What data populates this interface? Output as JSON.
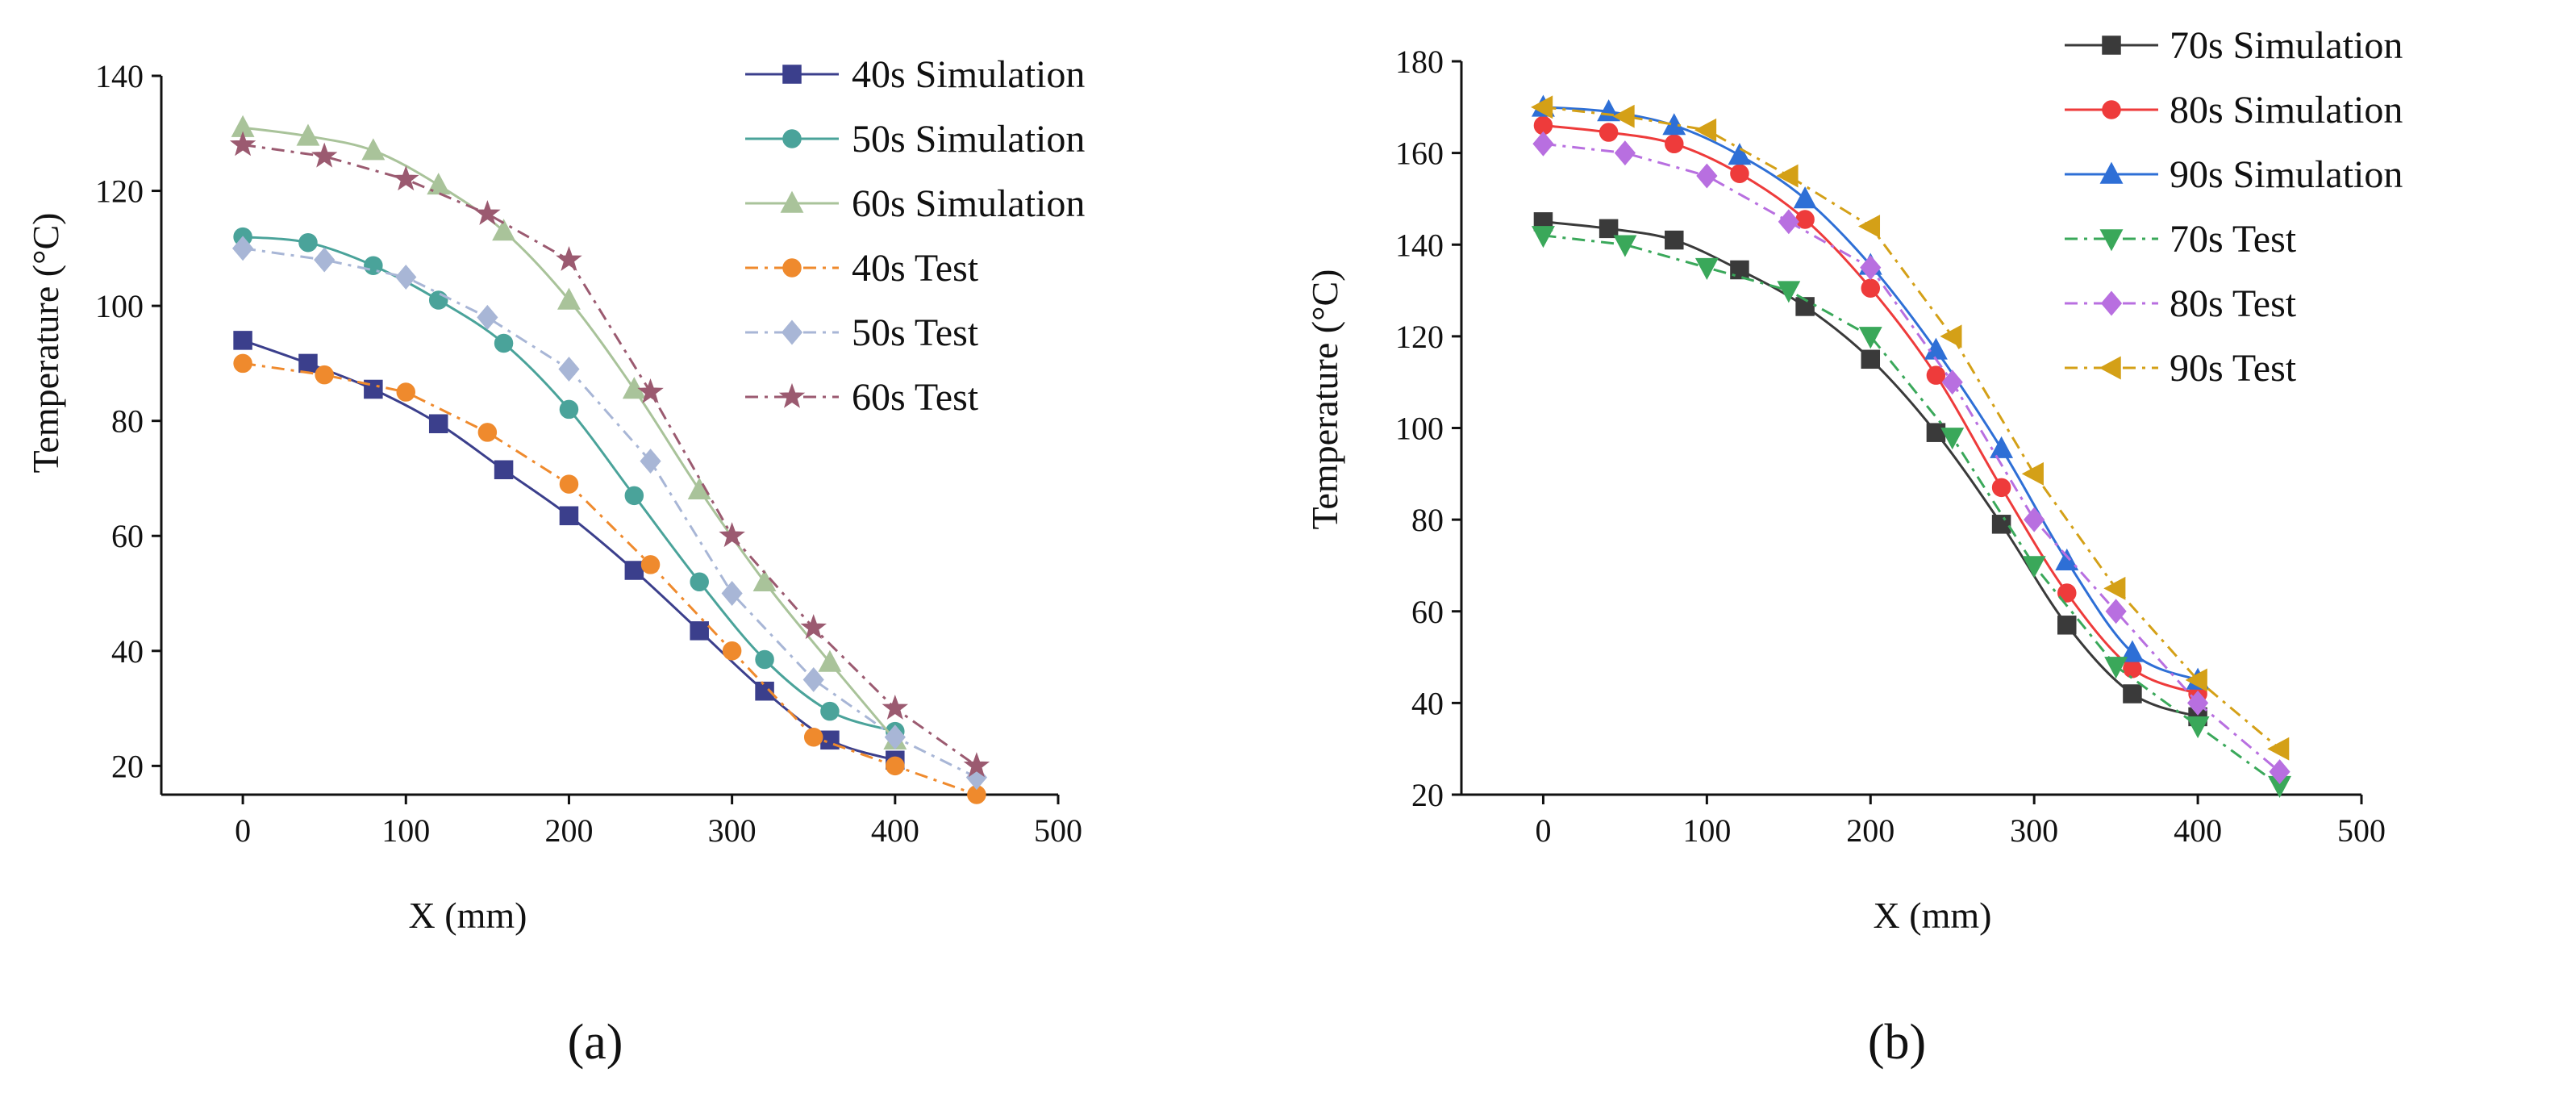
{
  "chart_data": [
    {
      "panel": "a",
      "type": "line",
      "caption": "(a)",
      "xlabel": "X (mm)",
      "ylabel": "Temperature (°C)",
      "xlim": [
        -50,
        500
      ],
      "ylim": [
        15,
        140
      ],
      "xticks": [
        0,
        100,
        200,
        300,
        400,
        500
      ],
      "yticks": [
        20,
        40,
        60,
        80,
        100,
        120,
        140
      ],
      "legend_position": "top-right",
      "series": [
        {
          "name": "40s Simulation",
          "color": "#3b3f8c",
          "marker": "square",
          "dash": "solid",
          "x": [
            0,
            40,
            80,
            120,
            160,
            200,
            240,
            280,
            320,
            360,
            400
          ],
          "y": [
            94,
            90,
            85.5,
            79.5,
            71.5,
            63.5,
            54,
            43.5,
            33,
            24.5,
            21
          ]
        },
        {
          "name": "50s Simulation",
          "color": "#4aa39a",
          "marker": "circle",
          "dash": "solid",
          "x": [
            0,
            40,
            80,
            120,
            160,
            200,
            240,
            280,
            320,
            360,
            400
          ],
          "y": [
            112,
            111,
            107,
            101,
            93.5,
            82,
            67,
            52,
            38.5,
            29.5,
            26
          ]
        },
        {
          "name": "60s Simulation",
          "color": "#a9c39a",
          "marker": "triangle-up",
          "dash": "solid",
          "x": [
            0,
            40,
            80,
            120,
            160,
            200,
            240,
            280,
            320,
            360,
            400
          ],
          "y": [
            131,
            129.5,
            127,
            121,
            113,
            101,
            85.5,
            68,
            52,
            38,
            24.5
          ]
        },
        {
          "name": "40s Test",
          "color": "#ef8a2d",
          "marker": "circle",
          "dash": "dashdot",
          "x": [
            0,
            50,
            100,
            150,
            200,
            250,
            300,
            350,
            400,
            450
          ],
          "y": [
            90,
            88,
            85,
            78,
            69,
            55,
            40,
            25,
            20,
            15
          ]
        },
        {
          "name": "50s Test",
          "color": "#a8b6d6",
          "marker": "diamond",
          "dash": "dashdot",
          "x": [
            0,
            50,
            100,
            150,
            200,
            250,
            300,
            350,
            400,
            450
          ],
          "y": [
            110,
            108,
            105,
            98,
            89,
            73,
            50,
            35,
            25,
            18
          ]
        },
        {
          "name": "60s Test",
          "color": "#9b5a70",
          "marker": "star",
          "dash": "dashdot",
          "x": [
            0,
            50,
            100,
            150,
            200,
            250,
            300,
            350,
            400,
            450
          ],
          "y": [
            128,
            126,
            122,
            116,
            108,
            85,
            60,
            44,
            30,
            20
          ]
        }
      ]
    },
    {
      "panel": "b",
      "type": "line",
      "caption": "(b)",
      "xlabel": "X (mm)",
      "ylabel": "Temperature (°C)",
      "xlim": [
        -50,
        500
      ],
      "ylim": [
        20,
        180
      ],
      "xticks": [
        0,
        100,
        200,
        300,
        400,
        500
      ],
      "yticks": [
        20,
        40,
        60,
        80,
        100,
        120,
        140,
        160,
        180
      ],
      "legend_position": "top-right",
      "series": [
        {
          "name": "70s Simulation",
          "color": "#3a3a3a",
          "marker": "square",
          "dash": "solid",
          "x": [
            0,
            40,
            80,
            120,
            160,
            200,
            240,
            280,
            320,
            360,
            400
          ],
          "y": [
            145,
            143.5,
            141,
            134.5,
            126.5,
            115,
            99,
            79,
            57,
            42,
            37
          ]
        },
        {
          "name": "80s Simulation",
          "color": "#ee3b3b",
          "marker": "circle",
          "dash": "solid",
          "x": [
            0,
            40,
            80,
            120,
            160,
            200,
            240,
            280,
            320,
            360,
            400
          ],
          "y": [
            166,
            164.5,
            162,
            155.5,
            145.5,
            130.5,
            111.5,
            87,
            64,
            47.5,
            42
          ]
        },
        {
          "name": "90s Simulation",
          "color": "#2e6fd6",
          "marker": "triangle-up",
          "dash": "solid",
          "x": [
            0,
            40,
            80,
            120,
            160,
            200,
            240,
            280,
            320,
            360,
            400
          ],
          "y": [
            170,
            169,
            166,
            159.5,
            150,
            135.5,
            117,
            95.5,
            71,
            51,
            45
          ]
        },
        {
          "name": "70s Test",
          "color": "#3aa85a",
          "marker": "triangle-down",
          "dash": "dashdot",
          "x": [
            0,
            50,
            100,
            150,
            200,
            250,
            300,
            350,
            400,
            450
          ],
          "y": [
            142,
            140,
            135,
            130,
            120,
            98,
            70,
            48,
            35,
            22
          ]
        },
        {
          "name": "80s Test",
          "color": "#b86fe0",
          "marker": "diamond",
          "dash": "dashdot",
          "x": [
            0,
            50,
            100,
            150,
            200,
            250,
            300,
            350,
            400,
            450
          ],
          "y": [
            162,
            160,
            155,
            145,
            135,
            110,
            80,
            60,
            40,
            25
          ]
        },
        {
          "name": "90s Test",
          "color": "#d4a017",
          "marker": "triangle-left",
          "dash": "dashdot",
          "x": [
            0,
            50,
            100,
            150,
            200,
            250,
            300,
            350,
            400,
            450
          ],
          "y": [
            170,
            168,
            165,
            155,
            144,
            120,
            90,
            65,
            45,
            30
          ]
        }
      ]
    }
  ]
}
